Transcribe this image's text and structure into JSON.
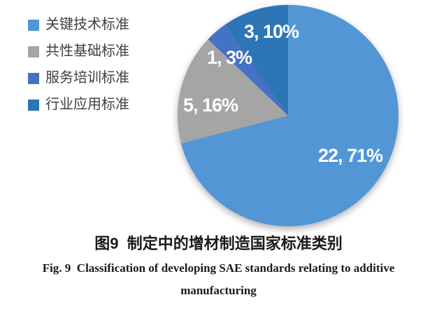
{
  "chart_data": {
    "type": "pie",
    "title": "",
    "categories": [
      "关键技术标准",
      "共性基础标准",
      "服务培训标准",
      "行业应用标准"
    ],
    "values": [
      22,
      5,
      1,
      3
    ],
    "percentages": [
      71,
      16,
      3,
      10
    ],
    "slice_labels": [
      "22, 71%",
      "5, 16%",
      "1, 3%",
      "3, 10%"
    ],
    "colors": [
      "#5296D6",
      "#A5A5A5",
      "#4472C4",
      "#2E75B6"
    ],
    "start_angle_deg": 0,
    "direction": "clockwise",
    "legend_position": "top-left",
    "data_label_format": "value, percent",
    "label_text_color": "#ffffff"
  },
  "legend": {
    "items": [
      {
        "label": "关键技术标准",
        "color": "#5296D6"
      },
      {
        "label": "共性基础标准",
        "color": "#A5A5A5"
      },
      {
        "label": "服务培训标准",
        "color": "#4472C4"
      },
      {
        "label": "行业应用标准",
        "color": "#2E75B6"
      }
    ]
  },
  "caption": {
    "line1_zh": "图9  制定中的增材制造国家标准类别",
    "line2_en": "Fig. 9  Classification of developing SAE standards relating to additive",
    "line3_en": "manufacturing"
  }
}
